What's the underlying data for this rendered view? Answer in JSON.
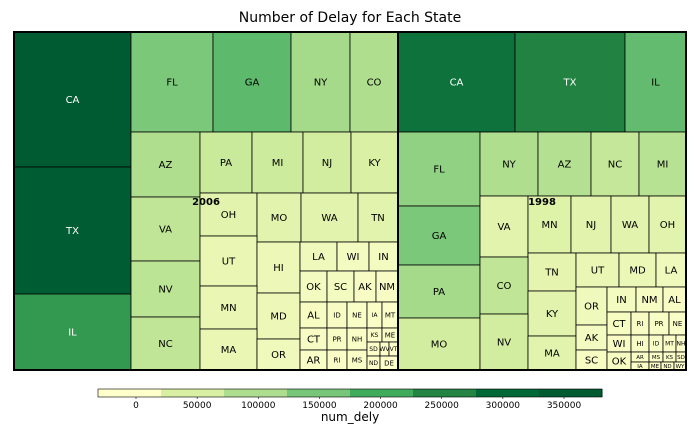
{
  "chart_data": {
    "type": "treemap",
    "title": "Number of Delay for Each State",
    "value_field": "num_dely",
    "groups": [
      {
        "name": "2006",
        "tiles": [
          {
            "label": "CA",
            "value": 360000
          },
          {
            "label": "TX",
            "value": 350000
          },
          {
            "label": "IL",
            "value": 230000
          },
          {
            "label": "FL",
            "value": 150000
          },
          {
            "label": "GA",
            "value": 180000
          },
          {
            "label": "NY",
            "value": 110000
          },
          {
            "label": "CO",
            "value": 100000
          },
          {
            "label": "AZ",
            "value": 100000
          },
          {
            "label": "PA",
            "value": 70000
          },
          {
            "label": "MI",
            "value": 65000
          },
          {
            "label": "NJ",
            "value": 60000
          },
          {
            "label": "KY",
            "value": 50000
          },
          {
            "label": "VA",
            "value": 80000
          },
          {
            "label": "OH",
            "value": 40000
          },
          {
            "label": "MO",
            "value": 40000
          },
          {
            "label": "WA",
            "value": 40000
          },
          {
            "label": "TN",
            "value": 40000
          },
          {
            "label": "NV",
            "value": 85000
          },
          {
            "label": "UT",
            "value": 30000
          },
          {
            "label": "HI",
            "value": 25000
          },
          {
            "label": "LA",
            "value": 20000
          },
          {
            "label": "WI",
            "value": 15000
          },
          {
            "label": "IN",
            "value": 15000
          },
          {
            "label": "NC",
            "value": 80000
          },
          {
            "label": "MN",
            "value": 30000
          },
          {
            "label": "MD",
            "value": 25000
          },
          {
            "label": "OK",
            "value": 15000
          },
          {
            "label": "SC",
            "value": 15000
          },
          {
            "label": "AK",
            "value": 10000
          },
          {
            "label": "NM",
            "value": 10000
          },
          {
            "label": "MA",
            "value": 30000
          },
          {
            "label": "OR",
            "value": 20000
          },
          {
            "label": "AL",
            "value": 12000
          },
          {
            "label": "ID",
            "value": 10000
          },
          {
            "label": "NE",
            "value": 8000
          },
          {
            "label": "IA",
            "value": 6000
          },
          {
            "label": "MT",
            "value": 5000
          },
          {
            "label": "CT",
            "value": 10000
          },
          {
            "label": "PR",
            "value": 9000
          },
          {
            "label": "NH",
            "value": 7000
          },
          {
            "label": "KS",
            "value": 5000
          },
          {
            "label": "ME",
            "value": 4000
          },
          {
            "label": "AR",
            "value": 8000
          },
          {
            "label": "RI",
            "value": 7000
          },
          {
            "label": "MS",
            "value": 6000
          },
          {
            "label": "SD",
            "value": 3000
          },
          {
            "label": "WV",
            "value": 2000
          },
          {
            "label": "VT",
            "value": 2000
          },
          {
            "label": "ND",
            "value": 2000
          },
          {
            "label": "DE",
            "value": 1500
          }
        ]
      },
      {
        "name": "1998",
        "tiles": [
          {
            "label": "CA",
            "value": 290000
          },
          {
            "label": "TX",
            "value": 260000
          },
          {
            "label": "IL",
            "value": 175000
          },
          {
            "label": "FL",
            "value": 130000
          },
          {
            "label": "NY",
            "value": 100000
          },
          {
            "label": "AZ",
            "value": 95000
          },
          {
            "label": "NC",
            "value": 75000
          },
          {
            "label": "MI",
            "value": 90000
          },
          {
            "label": "GA",
            "value": 150000
          },
          {
            "label": "VA",
            "value": 40000
          },
          {
            "label": "MN",
            "value": 45000
          },
          {
            "label": "NJ",
            "value": 40000
          },
          {
            "label": "WA",
            "value": 40000
          },
          {
            "label": "OH",
            "value": 40000
          },
          {
            "label": "PA",
            "value": 110000
          },
          {
            "label": "TN",
            "value": 35000
          },
          {
            "label": "UT",
            "value": 30000
          },
          {
            "label": "MD",
            "value": 28000
          },
          {
            "label": "LA",
            "value": 20000
          },
          {
            "label": "CO",
            "value": 80000
          },
          {
            "label": "KY",
            "value": 40000
          },
          {
            "label": "OR",
            "value": 20000
          },
          {
            "label": "IN",
            "value": 15000
          },
          {
            "label": "NM",
            "value": 12000
          },
          {
            "label": "AL",
            "value": 10000
          },
          {
            "label": "MO",
            "value": 60000
          },
          {
            "label": "NV",
            "value": 60000
          },
          {
            "label": "MA",
            "value": 40000
          },
          {
            "label": "AK",
            "value": 15000
          },
          {
            "label": "CT",
            "value": 12000
          },
          {
            "label": "RI",
            "value": 10000
          },
          {
            "label": "PR",
            "value": 9000
          },
          {
            "label": "NE",
            "value": 8000
          },
          {
            "label": "WI",
            "value": 10000
          },
          {
            "label": "HI",
            "value": 9000
          },
          {
            "label": "ID",
            "value": 8000
          },
          {
            "label": "MT",
            "value": 5000
          },
          {
            "label": "NH",
            "value": 4000
          },
          {
            "label": "SC",
            "value": 12000
          },
          {
            "label": "AR",
            "value": 8000
          },
          {
            "label": "MS",
            "value": 5000
          },
          {
            "label": "KS",
            "value": 4000
          },
          {
            "label": "SD",
            "value": 3000
          },
          {
            "label": "OK",
            "value": 12000
          },
          {
            "label": "IA",
            "value": 7000
          },
          {
            "label": "ME",
            "value": 4000
          },
          {
            "label": "ND",
            "value": 2000
          },
          {
            "label": "WY",
            "value": 2000
          }
        ]
      }
    ],
    "colorbar": {
      "label": "num_dely",
      "min": 0,
      "max": 360000,
      "ticks": [
        0,
        50000,
        100000,
        150000,
        200000,
        250000,
        300000,
        350000
      ],
      "tick_labels": [
        "0",
        "50000",
        "100000",
        "150000",
        "200000",
        "250000",
        "300000",
        "350000"
      ],
      "colors": [
        "#ffffcc",
        "#d9f0a3",
        "#addd8e",
        "#78c679",
        "#41ab5d",
        "#238443",
        "#006837",
        "#005a32"
      ]
    }
  }
}
